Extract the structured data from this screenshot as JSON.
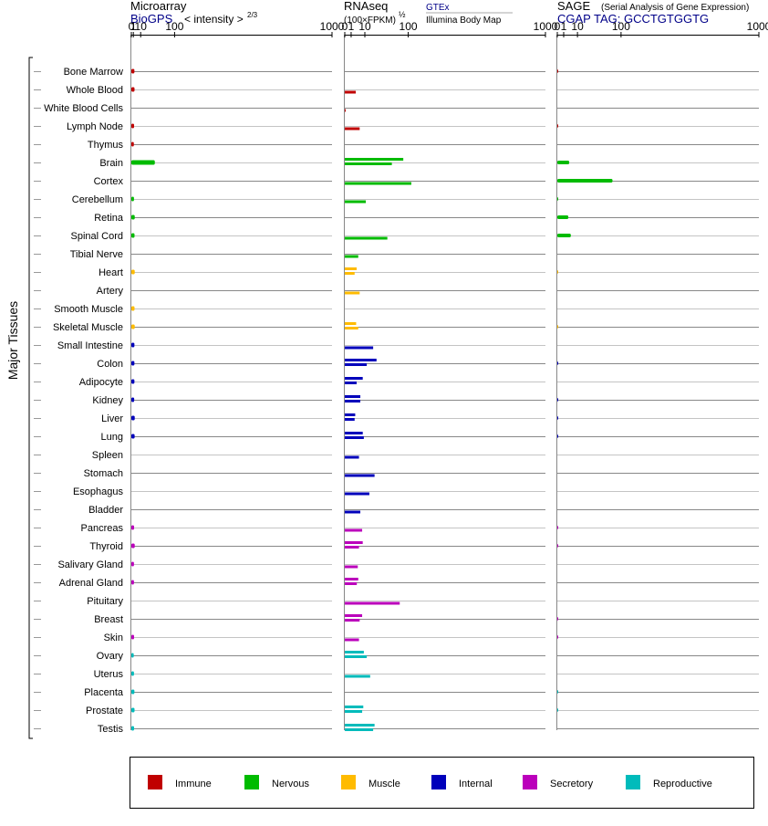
{
  "row_group_label": "Major Tissues",
  "tissues": [
    {
      "name": "Bone Marrow",
      "group": "Immune"
    },
    {
      "name": "Whole Blood",
      "group": "Immune"
    },
    {
      "name": "White Blood Cells",
      "group": "Immune"
    },
    {
      "name": "Lymph Node",
      "group": "Immune"
    },
    {
      "name": "Thymus",
      "group": "Immune"
    },
    {
      "name": "Brain",
      "group": "Nervous"
    },
    {
      "name": "Cortex",
      "group": "Nervous"
    },
    {
      "name": "Cerebellum",
      "group": "Nervous"
    },
    {
      "name": "Retina",
      "group": "Nervous"
    },
    {
      "name": "Spinal Cord",
      "group": "Nervous"
    },
    {
      "name": "Tibial Nerve",
      "group": "Nervous"
    },
    {
      "name": "Heart",
      "group": "Muscle"
    },
    {
      "name": "Artery",
      "group": "Muscle"
    },
    {
      "name": "Smooth Muscle",
      "group": "Muscle"
    },
    {
      "name": "Skeletal Muscle",
      "group": "Muscle"
    },
    {
      "name": "Small Intestine",
      "group": "Internal"
    },
    {
      "name": "Colon",
      "group": "Internal"
    },
    {
      "name": "Adipocyte",
      "group": "Internal"
    },
    {
      "name": "Kidney",
      "group": "Internal"
    },
    {
      "name": "Liver",
      "group": "Internal"
    },
    {
      "name": "Lung",
      "group": "Internal"
    },
    {
      "name": "Spleen",
      "group": "Internal"
    },
    {
      "name": "Stomach",
      "group": "Internal"
    },
    {
      "name": "Esophagus",
      "group": "Internal"
    },
    {
      "name": "Bladder",
      "group": "Internal"
    },
    {
      "name": "Pancreas",
      "group": "Secretory"
    },
    {
      "name": "Thyroid",
      "group": "Secretory"
    },
    {
      "name": "Salivary Gland",
      "group": "Secretory"
    },
    {
      "name": "Adrenal Gland",
      "group": "Secretory"
    },
    {
      "name": "Pituitary",
      "group": "Secretory"
    },
    {
      "name": "Breast",
      "group": "Secretory"
    },
    {
      "name": "Skin",
      "group": "Secretory"
    },
    {
      "name": "Ovary",
      "group": "Reproductive"
    },
    {
      "name": "Uterus",
      "group": "Reproductive"
    },
    {
      "name": "Placenta",
      "group": "Reproductive"
    },
    {
      "name": "Prostate",
      "group": "Reproductive"
    },
    {
      "name": "Testis",
      "group": "Reproductive"
    }
  ],
  "legend": [
    {
      "label": "Immune",
      "color": "#c00000"
    },
    {
      "label": "Nervous",
      "color": "#00bb00"
    },
    {
      "label": "Muscle",
      "color": "#ffbb00"
    },
    {
      "label": "Internal",
      "color": "#0000bb"
    },
    {
      "label": "Secretory",
      "color": "#bb00bb"
    },
    {
      "label": "Reproductive",
      "color": "#00bbbb"
    }
  ],
  "chart_data": [
    {
      "type": "bar",
      "orientation": "horizontal",
      "panel": "microarray",
      "title": "Microarray",
      "source": "BioGPS",
      "scale_label": "< intensity >",
      "scale_exponent": "2/3",
      "xscale": "power 2/3",
      "xlim": [
        0,
        1000
      ],
      "ticks": [
        "0",
        "1",
        "10",
        "100",
        "1000"
      ],
      "values": [
        [
          1.9
        ],
        [
          2.0
        ],
        [],
        [
          1.6
        ],
        [
          1.4
        ],
        [
          40
        ],
        [],
        [
          1.5
        ],
        [
          2.2
        ],
        [
          2.0
        ],
        [],
        [
          2.2
        ],
        [],
        [
          2.0
        ],
        [
          2.2
        ],
        [
          1.9
        ],
        [
          1.9
        ],
        [
          1.9
        ],
        [
          1.7
        ],
        [
          2.2
        ],
        [
          2.1
        ],
        [],
        [],
        [],
        [],
        [
          1.6
        ],
        [
          2.2
        ],
        [
          1.5
        ],
        [
          1.5
        ],
        [],
        [],
        [
          1.6
        ],
        [
          1.3
        ],
        [
          1.5
        ],
        [
          1.9
        ],
        [
          2.0
        ],
        [
          1.6
        ]
      ]
    },
    {
      "type": "bar",
      "orientation": "horizontal",
      "panel": "rnaseq",
      "title": "RNAseq",
      "scale_label": "(100×FPKM)",
      "scale_exponent": "½",
      "sources": [
        "GTEx",
        "Illumina Body Map"
      ],
      "xscale": "sqrt",
      "xlim": [
        0,
        1000
      ],
      "ticks": [
        "0",
        "1",
        "10",
        "100",
        "1000"
      ],
      "values": [
        [],
        [
          3.0
        ],
        [
          0.02
        ],
        [
          5.5
        ],
        [],
        [
          85,
          55
        ],
        [
          110
        ],
        [
          11
        ],
        [],
        [
          45
        ],
        [
          4.5
        ],
        [
          3.5,
          2.4
        ],
        [
          5.5
        ],
        [],
        [
          3.2,
          4.5
        ],
        [
          20
        ],
        [
          25,
          12
        ],
        [
          8,
          3.5
        ],
        [
          6,
          6
        ],
        [
          2.7,
          2.4
        ],
        [
          8,
          9
        ],
        [
          5
        ],
        [
          22
        ],
        [
          15
        ],
        [
          6
        ],
        [
          7.5
        ],
        [
          8,
          5
        ],
        [
          4.2
        ],
        [
          4.5,
          3.6
        ],
        [
          75
        ],
        [
          7.5,
          5.5
        ],
        [
          5
        ],
        [
          9,
          12
        ],
        [
          16
        ],
        [],
        [
          8.5,
          7.5
        ],
        [
          22,
          20
        ]
      ]
    },
    {
      "type": "bar",
      "orientation": "horizontal",
      "panel": "sage",
      "title": "SAGE",
      "subtitle": "(Serial Analysis of Gene Expression)",
      "tag_label": "CGAP TAG: GCCTGTGGTG",
      "xscale": "sqrt",
      "xlim": [
        0,
        1000
      ],
      "ticks": [
        "0",
        "1",
        "10",
        "100",
        "1000"
      ],
      "values": [
        [
          0.005
        ],
        [],
        [],
        [
          0.005
        ],
        [],
        [
          3.5
        ],
        [
          75
        ],
        [
          0.01
        ],
        [
          3.0
        ],
        [
          4.5
        ],
        [],
        [
          0.005
        ],
        [],
        [],
        [
          0.005
        ],
        [],
        [
          0.005
        ],
        [],
        [
          0.005
        ],
        [
          0.005
        ],
        [
          0.005
        ],
        [],
        [],
        [],
        [],
        [
          0.005
        ],
        [
          0.005
        ],
        [],
        [],
        [],
        [
          0.005
        ],
        [
          0.005
        ],
        [],
        [],
        [
          0.005
        ],
        [
          0.005
        ],
        []
      ]
    }
  ]
}
